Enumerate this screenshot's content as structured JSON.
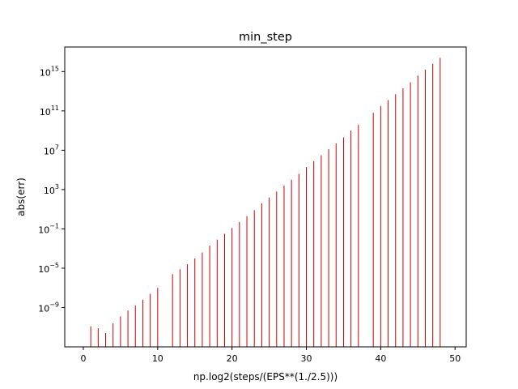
{
  "chart_data": {
    "type": "bar",
    "title": "min_step",
    "xlabel": "np.log2(steps/(EPS**(1./2.5)))",
    "ylabel": "abs(err)",
    "xlim": [
      -2.5,
      51.5
    ],
    "ylim_log10": [
      -13.0,
      17.5
    ],
    "y_scale": "log",
    "grid": false,
    "bar_color": "#cc0000",
    "xticks": [
      0,
      10,
      20,
      30,
      40,
      50
    ],
    "yticks": [
      {
        "exp": -9,
        "label": "10",
        "sup": "−9"
      },
      {
        "exp": -5,
        "label": "10",
        "sup": "−5"
      },
      {
        "exp": -1,
        "label": "10",
        "sup": "−1"
      },
      {
        "exp": 3,
        "label": "10",
        "sup": "3"
      },
      {
        "exp": 7,
        "label": "10",
        "sup": "7"
      },
      {
        "exp": 11,
        "label": "10",
        "sup": "11"
      },
      {
        "exp": 15,
        "label": "10",
        "sup": "15"
      }
    ],
    "x": [
      1,
      2,
      3,
      4,
      5,
      6,
      7,
      8,
      9,
      10,
      12,
      13,
      14,
      15,
      16,
      17,
      18,
      19,
      20,
      21,
      22,
      23,
      24,
      25,
      26,
      27,
      28,
      29,
      30,
      31,
      32,
      33,
      34,
      35,
      36,
      37,
      39,
      40,
      41,
      42,
      43,
      44,
      45,
      46,
      47,
      48
    ],
    "log10_values": [
      -10.9,
      -11.1,
      -11.6,
      -10.6,
      -9.9,
      -9.3,
      -8.8,
      -8.2,
      -7.6,
      -7.0,
      -5.6,
      -5.1,
      -4.6,
      -4.0,
      -3.4,
      -2.7,
      -2.1,
      -1.5,
      -0.9,
      -0.3,
      0.3,
      0.9,
      1.6,
      2.2,
      2.8,
      3.4,
      4.0,
      4.6,
      5.3,
      5.9,
      6.5,
      7.1,
      7.7,
      8.3,
      9.0,
      9.6,
      10.8,
      11.5,
      12.1,
      12.7,
      13.3,
      13.9,
      14.6,
      15.2,
      15.8,
      16.4
    ]
  }
}
